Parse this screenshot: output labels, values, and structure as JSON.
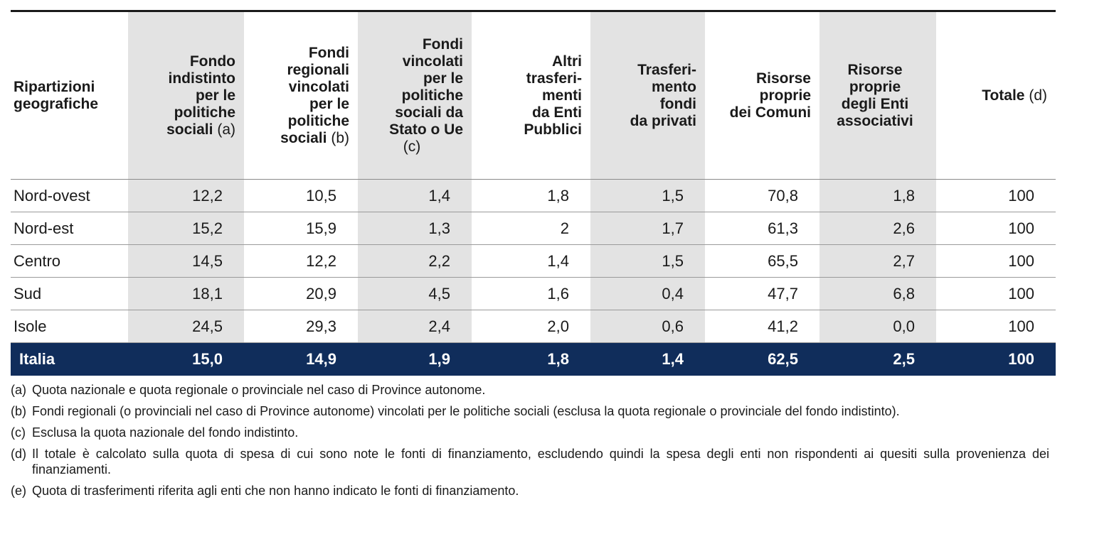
{
  "headers": {
    "region": [
      "Ripartizioni",
      "geografiche"
    ],
    "col1": [
      "Fondo",
      "indistinto",
      "per le",
      "politiche"
    ],
    "col1_last": "sociali",
    "col1_note": "(a)",
    "col2": [
      "Fondi",
      "regionali",
      "vincolati",
      "per le",
      "politiche"
    ],
    "col2_last": "sociali",
    "col2_note": "(b)",
    "col3": [
      "Fondi",
      "vincolati",
      "per le",
      "politiche",
      "sociali da",
      "Stato o Ue"
    ],
    "col3_note": "(c)",
    "col4": [
      "Altri",
      "trasferi-",
      "menti",
      "da Enti",
      "Pubblici"
    ],
    "col5": [
      "Trasferi-",
      "mento",
      "fondi",
      "da privati"
    ],
    "col6": [
      "Risorse",
      "proprie",
      "dei Comuni"
    ],
    "col7": [
      "Risorse",
      "proprie",
      "degli Enti",
      "associativi"
    ],
    "col8": "Totale",
    "col8_note": "(d)"
  },
  "rows": [
    {
      "region": "Nord-ovest",
      "values": [
        "12,2",
        "10,5",
        "1,4",
        "1,8",
        "1,5",
        "70,8",
        "1,8",
        "100"
      ]
    },
    {
      "region": "Nord-est",
      "values": [
        "15,2",
        "15,9",
        "1,3",
        "2",
        "1,7",
        "61,3",
        "2,6",
        "100"
      ]
    },
    {
      "region": "Centro",
      "values": [
        "14,5",
        "12,2",
        "2,2",
        "1,4",
        "1,5",
        "65,5",
        "2,7",
        "100"
      ]
    },
    {
      "region": "Sud",
      "values": [
        "18,1",
        "20,9",
        "4,5",
        "1,6",
        "0,4",
        "47,7",
        "6,8",
        "100"
      ]
    },
    {
      "region": "Isole",
      "values": [
        "24,5",
        "29,3",
        "2,4",
        "2,0",
        "0,6",
        "41,2",
        "0,0",
        "100"
      ]
    }
  ],
  "total": {
    "region": "Italia",
    "values": [
      "15,0",
      "14,9",
      "1,9",
      "1,8",
      "1,4",
      "62,5",
      "2,5",
      "100"
    ]
  },
  "notes": [
    {
      "tag": "(a)",
      "text": "Quota nazionale e quota regionale o provinciale nel caso di Province autonome."
    },
    {
      "tag": "(b)",
      "text": "Fondi regionali (o provinciali nel caso di Province autonome) vincolati per le politiche sociali (esclusa la quota regionale o provinciale del fondo indistinto)."
    },
    {
      "tag": "(c)",
      "text": "Esclusa la quota nazionale del fondo indistinto."
    },
    {
      "tag": "(d)",
      "text": "Il totale è calcolato sulla quota di spesa di cui sono note le fonti di finanziamento, escludendo quindi la spesa degli enti non rispondenti ai quesiti sulla provenienza dei finanziamenti."
    },
    {
      "tag": "(e)",
      "text": "Quota di trasferimenti riferita agli enti che non hanno indicato le fonti di finanziamento."
    }
  ],
  "colors": {
    "header_shade": "#e3e3e3",
    "total_row": "#102d5b",
    "total_text": "#ffffff"
  }
}
